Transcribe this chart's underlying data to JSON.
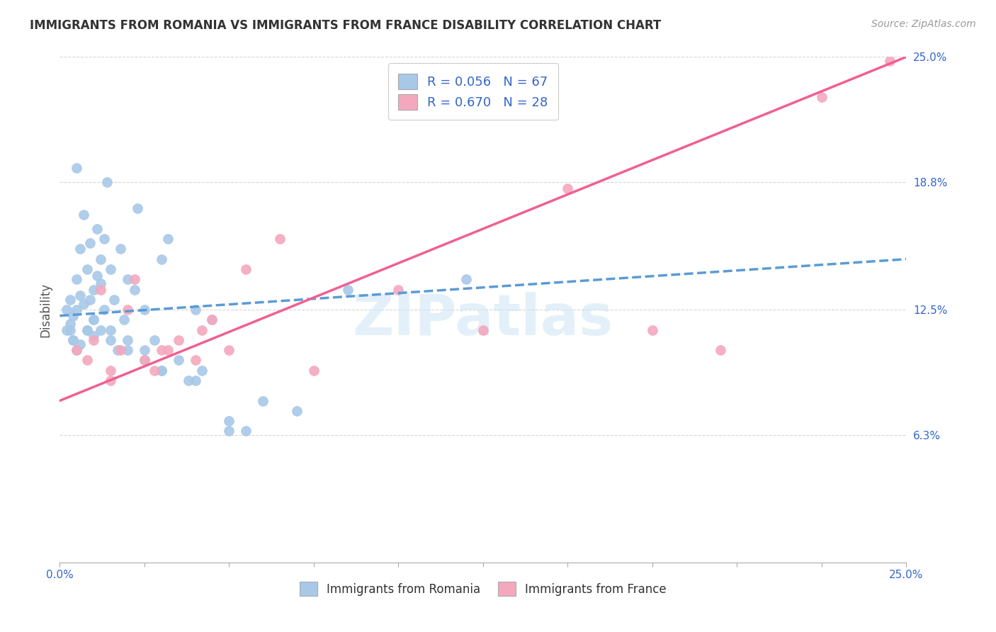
{
  "title": "IMMIGRANTS FROM ROMANIA VS IMMIGRANTS FROM FRANCE DISABILITY CORRELATION CHART",
  "source": "Source: ZipAtlas.com",
  "ylabel": "Disability",
  "ytick_values": [
    6.3,
    12.5,
    18.8,
    25.0
  ],
  "xmin": 0.0,
  "xmax": 25.0,
  "ymin": 0.0,
  "ymax": 25.0,
  "romania_color": "#a8c8e8",
  "france_color": "#f4a8be",
  "romania_line_color": "#5b9bd5",
  "france_line_color": "#f06090",
  "legend_text_color": "#3366cc",
  "romania_r": 0.056,
  "romania_n": 67,
  "france_r": 0.67,
  "france_n": 28,
  "romania_line_x0": 0.0,
  "romania_line_y0": 12.2,
  "romania_line_x1": 25.0,
  "romania_line_y1": 15.0,
  "france_line_x0": 0.0,
  "france_line_y0": 8.0,
  "france_line_x1": 25.0,
  "france_line_y1": 25.0,
  "romania_x": [
    0.2,
    0.2,
    0.3,
    0.3,
    0.4,
    0.4,
    0.5,
    0.5,
    0.5,
    0.6,
    0.6,
    0.7,
    0.7,
    0.8,
    0.8,
    0.9,
    0.9,
    1.0,
    1.0,
    1.0,
    1.1,
    1.1,
    1.2,
    1.2,
    1.3,
    1.3,
    1.4,
    1.5,
    1.5,
    1.6,
    1.7,
    1.8,
    1.9,
    2.0,
    2.0,
    2.2,
    2.3,
    2.5,
    2.5,
    2.8,
    3.0,
    3.0,
    3.2,
    3.5,
    3.8,
    4.0,
    4.2,
    4.5,
    5.0,
    5.5,
    6.0,
    7.0,
    0.3,
    0.4,
    0.5,
    0.6,
    0.8,
    1.0,
    1.2,
    1.5,
    2.0,
    2.5,
    3.0,
    4.0,
    5.0,
    8.5,
    12.0
  ],
  "romania_y": [
    11.5,
    12.5,
    11.8,
    13.0,
    12.2,
    11.0,
    12.5,
    14.0,
    19.5,
    13.2,
    15.5,
    12.8,
    17.2,
    11.5,
    14.5,
    13.0,
    15.8,
    12.0,
    13.5,
    11.2,
    14.2,
    16.5,
    15.0,
    13.8,
    16.0,
    12.5,
    18.8,
    14.5,
    11.5,
    13.0,
    10.5,
    15.5,
    12.0,
    14.0,
    11.0,
    13.5,
    17.5,
    10.5,
    12.5,
    11.0,
    15.0,
    9.5,
    16.0,
    10.0,
    9.0,
    12.5,
    9.5,
    12.0,
    7.0,
    6.5,
    8.0,
    7.5,
    11.5,
    11.0,
    10.5,
    10.8,
    11.5,
    12.0,
    11.5,
    11.0,
    10.5,
    10.0,
    9.5,
    9.0,
    6.5,
    13.5,
    14.0
  ],
  "france_x": [
    0.5,
    0.8,
    1.0,
    1.2,
    1.5,
    1.5,
    1.8,
    2.0,
    2.2,
    2.5,
    2.8,
    3.0,
    3.5,
    4.0,
    4.5,
    5.0,
    5.5,
    6.5,
    7.5,
    10.0,
    12.5,
    15.0,
    17.5,
    19.5,
    22.5,
    24.5,
    3.2,
    4.2
  ],
  "france_y": [
    10.5,
    10.0,
    11.0,
    13.5,
    9.5,
    9.0,
    10.5,
    12.5,
    14.0,
    10.0,
    9.5,
    10.5,
    11.0,
    10.0,
    12.0,
    10.5,
    14.5,
    16.0,
    9.5,
    13.5,
    11.5,
    18.5,
    11.5,
    10.5,
    23.0,
    24.8,
    10.5,
    11.5
  ],
  "watermark": "ZIPatlas",
  "background_color": "#ffffff",
  "grid_color": "#cccccc"
}
